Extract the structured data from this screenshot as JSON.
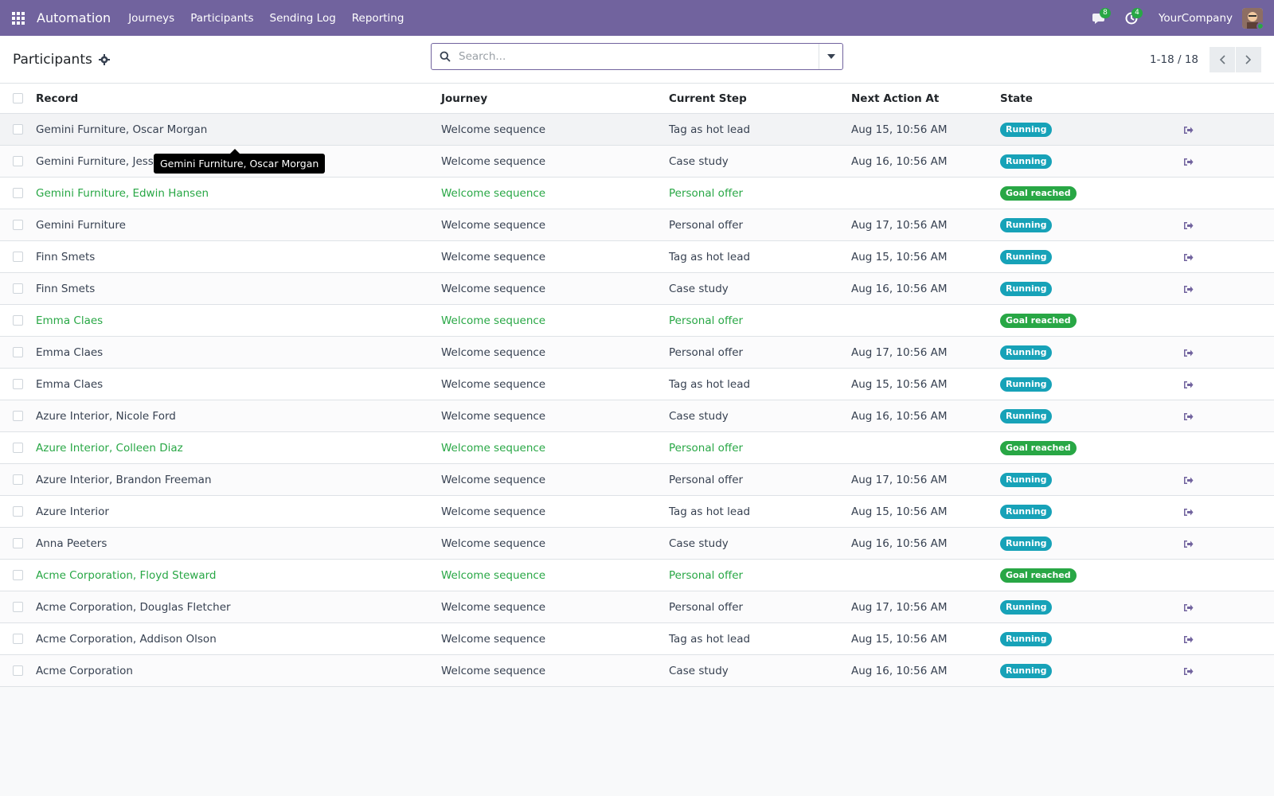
{
  "navbar": {
    "app_name": "Automation",
    "menu": [
      "Journeys",
      "Participants",
      "Sending Log",
      "Reporting"
    ],
    "messages_count": "8",
    "activities_count": "4",
    "company": "YourCompany",
    "brand_color": "#71639e"
  },
  "control_panel": {
    "title": "Participants",
    "search_placeholder": "Search...",
    "pager": "1-18 / 18"
  },
  "list": {
    "columns": [
      "Record",
      "Journey",
      "Current Step",
      "Next Action At",
      "State"
    ],
    "rows": [
      {
        "record": "Gemini Furniture, Oscar Morgan",
        "journey": "Welcome sequence",
        "step": "Tag as hot lead",
        "next": "Aug 15, 10:56 AM",
        "state": "Running",
        "goal": false
      },
      {
        "record": "Gemini Furniture, Jesse Brown",
        "journey": "Welcome sequence",
        "step": "Case study",
        "next": "Aug 16, 10:56 AM",
        "state": "Running",
        "goal": false
      },
      {
        "record": "Gemini Furniture, Edwin Hansen",
        "journey": "Welcome sequence",
        "step": "Personal offer",
        "next": "",
        "state": "Goal reached",
        "goal": true
      },
      {
        "record": "Gemini Furniture",
        "journey": "Welcome sequence",
        "step": "Personal offer",
        "next": "Aug 17, 10:56 AM",
        "state": "Running",
        "goal": false
      },
      {
        "record": "Finn Smets",
        "journey": "Welcome sequence",
        "step": "Tag as hot lead",
        "next": "Aug 15, 10:56 AM",
        "state": "Running",
        "goal": false
      },
      {
        "record": "Finn Smets",
        "journey": "Welcome sequence",
        "step": "Case study",
        "next": "Aug 16, 10:56 AM",
        "state": "Running",
        "goal": false
      },
      {
        "record": "Emma Claes",
        "journey": "Welcome sequence",
        "step": "Personal offer",
        "next": "",
        "state": "Goal reached",
        "goal": true
      },
      {
        "record": "Emma Claes",
        "journey": "Welcome sequence",
        "step": "Personal offer",
        "next": "Aug 17, 10:56 AM",
        "state": "Running",
        "goal": false
      },
      {
        "record": "Emma Claes",
        "journey": "Welcome sequence",
        "step": "Tag as hot lead",
        "next": "Aug 15, 10:56 AM",
        "state": "Running",
        "goal": false
      },
      {
        "record": "Azure Interior, Nicole Ford",
        "journey": "Welcome sequence",
        "step": "Case study",
        "next": "Aug 16, 10:56 AM",
        "state": "Running",
        "goal": false
      },
      {
        "record": "Azure Interior, Colleen Diaz",
        "journey": "Welcome sequence",
        "step": "Personal offer",
        "next": "",
        "state": "Goal reached",
        "goal": true
      },
      {
        "record": "Azure Interior, Brandon Freeman",
        "journey": "Welcome sequence",
        "step": "Personal offer",
        "next": "Aug 17, 10:56 AM",
        "state": "Running",
        "goal": false
      },
      {
        "record": "Azure Interior",
        "journey": "Welcome sequence",
        "step": "Tag as hot lead",
        "next": "Aug 15, 10:56 AM",
        "state": "Running",
        "goal": false
      },
      {
        "record": "Anna Peeters",
        "journey": "Welcome sequence",
        "step": "Case study",
        "next": "Aug 16, 10:56 AM",
        "state": "Running",
        "goal": false
      },
      {
        "record": "Acme Corporation, Floyd Steward",
        "journey": "Welcome sequence",
        "step": "Personal offer",
        "next": "",
        "state": "Goal reached",
        "goal": true
      },
      {
        "record": "Acme Corporation, Douglas Fletcher",
        "journey": "Welcome sequence",
        "step": "Personal offer",
        "next": "Aug 17, 10:56 AM",
        "state": "Running",
        "goal": false
      },
      {
        "record": "Acme Corporation, Addison Olson",
        "journey": "Welcome sequence",
        "step": "Tag as hot lead",
        "next": "Aug 15, 10:56 AM",
        "state": "Running",
        "goal": false
      },
      {
        "record": "Acme Corporation",
        "journey": "Welcome sequence",
        "step": "Case study",
        "next": "Aug 16, 10:56 AM",
        "state": "Running",
        "goal": false
      }
    ],
    "colors": {
      "running": "#17a2b8",
      "goal_reached": "#28a745"
    }
  },
  "tooltip": {
    "text": "Gemini Furniture, Oscar Morgan"
  }
}
